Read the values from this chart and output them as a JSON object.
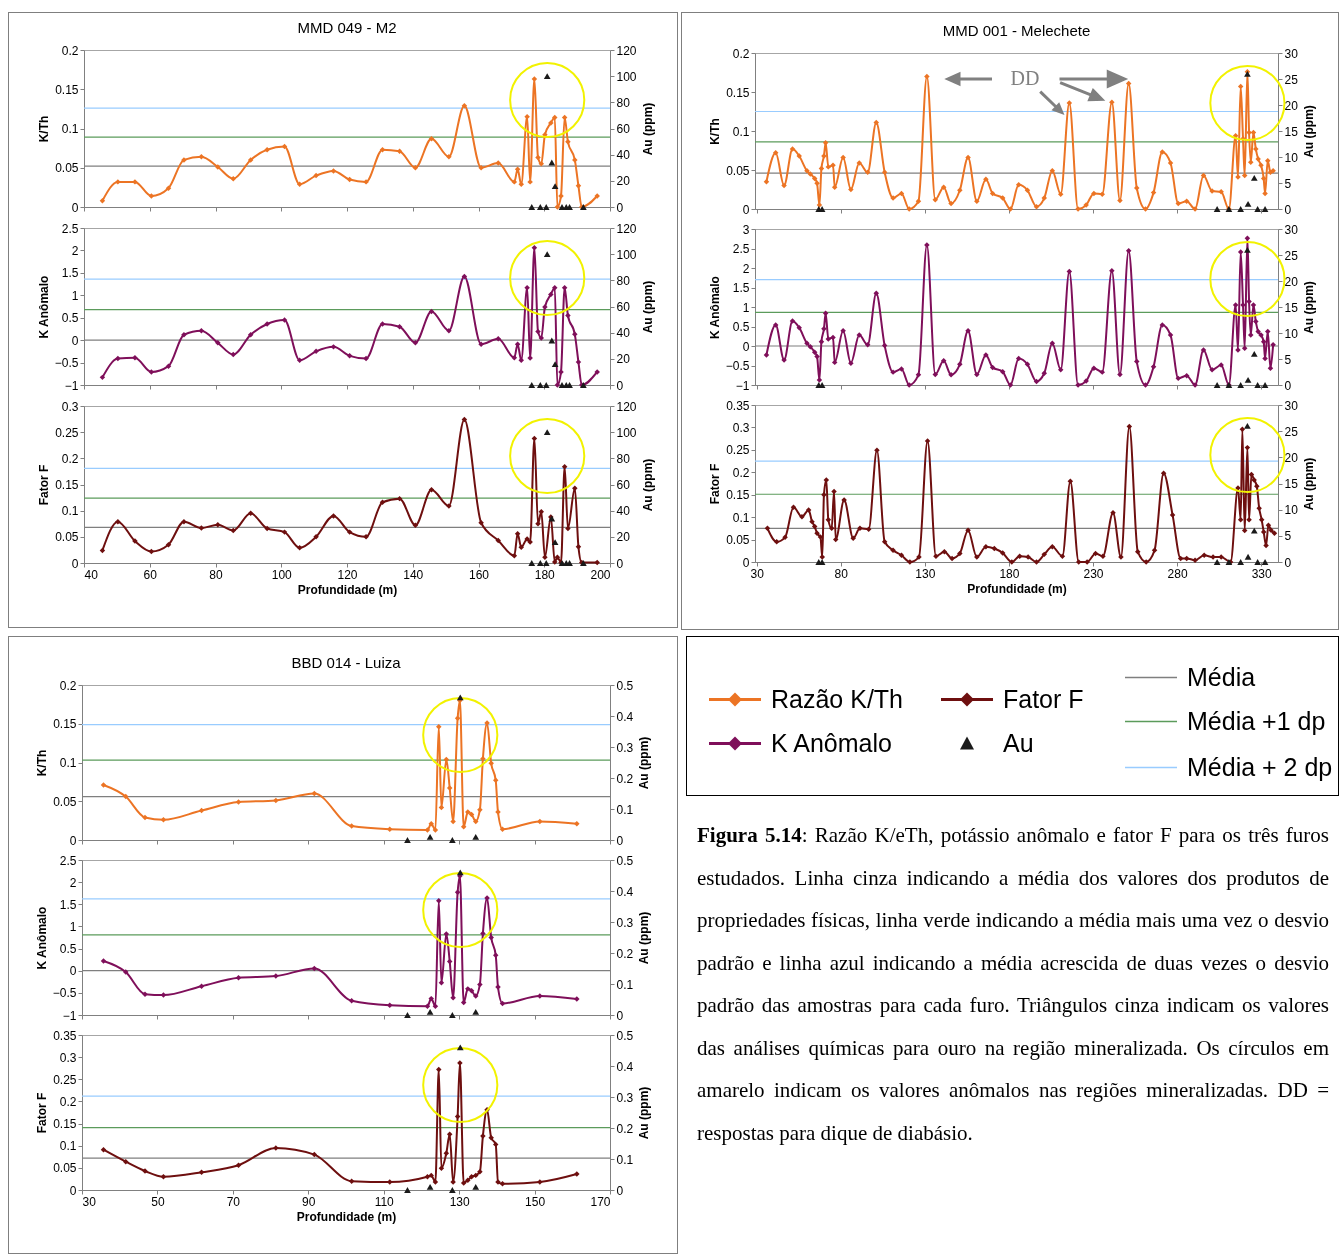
{
  "chart_data": [
    {
      "type": "line",
      "title": "MMD 049 - M2",
      "ylabel": "K/Th",
      "y2label": "Au (ppm)",
      "marker": "diamond",
      "tick_labels": "y",
      "x": [
        45.6,
        50.3,
        55.5,
        60.5,
        65.7,
        70.4,
        75.7,
        80.7,
        85.4,
        90.7,
        95.7,
        101,
        105.6,
        110.6,
        115.9,
        120.8,
        125.8,
        130.8,
        136,
        140.8,
        145.7,
        151,
        155.7,
        160.8,
        166,
        170.9,
        171.9,
        173,
        174.8,
        175.7,
        177,
        178.1,
        179.1,
        180.2,
        182,
        183.2,
        184,
        185.1,
        186.2,
        187.2,
        189.3,
        190.4,
        191.4,
        196.1
      ],
      "series": [
        {
          "color": "#ec7424",
          "values": [
            0.008,
            0.032,
            0.032,
            0.014,
            0.024,
            0.06,
            0.064,
            0.051,
            0.036,
            0.06,
            0.073,
            0.077,
            0.029,
            0.04,
            0.046,
            0.035,
            0.032,
            0.073,
            0.071,
            0.05,
            0.087,
            0.064,
            0.129,
            0.05,
            0.056,
            0.032,
            0.048,
            0.029,
            0.115,
            0.032,
            0.163,
            0.063,
            0.055,
            0.092,
            0.107,
            0.114,
            0,
            0.014,
            0.114,
            0.083,
            0.06,
            0.027,
            0,
            0.014
          ]
        },
        {
          "type": "scatter",
          "axis": "y2",
          "marker": "triangle",
          "color": "#1a1a1a",
          "x": [
            176.2,
            178.8,
            180.6,
            180.9,
            182.3,
            183.3,
            185.4,
            186.7,
            187.7,
            191.9
          ],
          "values": [
            0,
            0,
            0,
            100,
            34,
            16,
            0,
            0,
            0,
            0
          ]
        }
      ],
      "xlim": [
        40,
        200
      ],
      "xticks": [
        40,
        60,
        80,
        100,
        120,
        140,
        160,
        180,
        200
      ],
      "ylim": [
        0,
        0.2
      ],
      "yticks": [
        0,
        0.05,
        0.1,
        0.15,
        0.2
      ],
      "y2lim": [
        0,
        120
      ],
      "y2ticks": [
        0,
        20,
        40,
        60,
        80,
        100,
        120
      ],
      "ref_lines": [
        {
          "axis": "y",
          "value": 0.052,
          "color": "#7f7f7f"
        },
        {
          "axis": "y",
          "value": 0.089,
          "color": "#5b9b5b"
        },
        {
          "axis": "y",
          "value": 0.126,
          "color": "#99ccff"
        }
      ]
    },
    {
      "type": "line",
      "ylabel": "K Anômalo",
      "y2label": "Au (ppm)",
      "marker": "diamond",
      "tick_labels": "y",
      "x": [
        45.6,
        50.3,
        55.5,
        60.5,
        65.7,
        70.4,
        75.7,
        80.7,
        85.4,
        90.7,
        95.7,
        101,
        105.6,
        110.6,
        115.9,
        120.8,
        125.8,
        130.8,
        136,
        140.8,
        145.7,
        151,
        155.7,
        160.8,
        166,
        170.9,
        171.9,
        173,
        174.8,
        175.7,
        177,
        178.1,
        179.1,
        180.2,
        182,
        183.2,
        184,
        185.1,
        186.2,
        187.2,
        189.3,
        190.4,
        191.4,
        196.1
      ],
      "series": [
        {
          "color": "#7f0f5a",
          "values": [
            -0.83,
            -0.41,
            -0.39,
            -0.71,
            -0.58,
            0.12,
            0.21,
            -0.06,
            -0.32,
            0.12,
            0.36,
            0.45,
            -0.45,
            -0.25,
            -0.15,
            -0.35,
            -0.41,
            0.36,
            0.3,
            -0.06,
            0.64,
            0.21,
            1.42,
            -0.09,
            0.03,
            -0.39,
            -0.09,
            -0.45,
            1.17,
            -0.4,
            2.06,
            0.19,
            0.05,
            0.74,
            1.02,
            1.17,
            -1,
            -0.71,
            1.17,
            0.55,
            0.13,
            -0.49,
            -1,
            -0.71
          ]
        },
        {
          "type": "scatter",
          "axis": "y2",
          "marker": "triangle",
          "color": "#1a1a1a",
          "x": [
            176.2,
            178.8,
            180.6,
            180.9,
            182.3,
            183.3,
            185.4,
            186.7,
            187.7,
            191.9
          ],
          "values": [
            0,
            0,
            0,
            100,
            34,
            16,
            0,
            0,
            0,
            0
          ]
        }
      ],
      "xlim": [
        40,
        200
      ],
      "xticks": [
        40,
        60,
        80,
        100,
        120,
        140,
        160,
        180,
        200
      ],
      "ylim": [
        -1,
        2.5
      ],
      "yticks": [
        -1,
        -0.5,
        0,
        0.5,
        1,
        1.5,
        2,
        2.5
      ],
      "y2lim": [
        0,
        120
      ],
      "y2ticks": [
        0,
        20,
        40,
        60,
        80,
        100,
        120
      ],
      "ref_lines": [
        {
          "axis": "y",
          "value": 0,
          "color": "#7f7f7f"
        },
        {
          "axis": "y",
          "value": 0.68,
          "color": "#5b9b5b"
        },
        {
          "axis": "y",
          "value": 1.36,
          "color": "#99ccff"
        }
      ]
    },
    {
      "type": "line",
      "ylabel": "Fator F",
      "y2label": "Au (ppm)",
      "xlabel": "Profundidade (m)",
      "marker": "diamond",
      "x": [
        45.6,
        50.3,
        55.5,
        60.5,
        65.7,
        70.4,
        75.7,
        80.7,
        85.4,
        90.7,
        95.7,
        101,
        105.6,
        110.6,
        115.9,
        120.8,
        125.8,
        130.8,
        136,
        140.8,
        145.7,
        151,
        155.7,
        160.8,
        166,
        170.9,
        171.9,
        173,
        174.8,
        175.7,
        177,
        178.1,
        179.1,
        180.2,
        182,
        183.2,
        184,
        185.1,
        186.2,
        187.2,
        189.3,
        190.4,
        191.4,
        196.1
      ],
      "series": [
        {
          "color": "#6e0f0f",
          "values": [
            0.024,
            0.079,
            0.042,
            0.022,
            0.035,
            0.079,
            0.067,
            0.073,
            0.062,
            0.095,
            0.066,
            0.059,
            0.029,
            0.05,
            0.09,
            0.059,
            0.05,
            0.116,
            0.123,
            0.072,
            0.14,
            0.109,
            0.274,
            0.077,
            0.043,
            0.014,
            0.056,
            0.03,
            0.046,
            0.04,
            0.238,
            0.075,
            0.098,
            0.011,
            0.088,
            0.002,
            0.011,
            0.001,
            0.184,
            0.066,
            0.143,
            0.031,
            0.001,
            0.001
          ]
        },
        {
          "type": "scatter",
          "axis": "y2",
          "marker": "triangle",
          "color": "#1a1a1a",
          "x": [
            176.2,
            178.8,
            180.6,
            180.9,
            182.3,
            183.3,
            185.4,
            186.7,
            187.7,
            191.9
          ],
          "values": [
            0,
            0,
            0,
            100,
            34,
            16,
            0,
            0,
            0,
            0
          ]
        }
      ],
      "xlim": [
        40,
        200
      ],
      "xticks": [
        40,
        60,
        80,
        100,
        120,
        140,
        160,
        180,
        200
      ],
      "ylim": [
        0,
        0.3
      ],
      "yticks": [
        0,
        0.05,
        0.1,
        0.15,
        0.2,
        0.25,
        0.3
      ],
      "y2lim": [
        0,
        120
      ],
      "y2ticks": [
        0,
        20,
        40,
        60,
        80,
        100,
        120
      ],
      "ref_lines": [
        {
          "axis": "y",
          "value": 0.068,
          "color": "#7f7f7f"
        },
        {
          "axis": "y",
          "value": 0.124,
          "color": "#5b9b5b"
        },
        {
          "axis": "y",
          "value": 0.181,
          "color": "#99ccff"
        }
      ]
    },
    {
      "type": "line",
      "title": "MMD 001 - Melechete",
      "ylabel": "K/Th",
      "y2label": "Au (ppm)",
      "marker": "diamond",
      "tick_labels": "y",
      "x": [
        35.8,
        41.3,
        46.3,
        51.3,
        55.3,
        59.9,
        61.9,
        64.5,
        65.9,
        67.3,
        68.5,
        70,
        71,
        72.6,
        75.4,
        76.4,
        81.4,
        86,
        91,
        96,
        101.1,
        106.1,
        111.1,
        116.1,
        120.7,
        126.2,
        131.2,
        136.2,
        141.2,
        145.6,
        150.8,
        155.7,
        160.9,
        166.3,
        170.3,
        176.3,
        180.9,
        185.8,
        191,
        196.4,
        201,
        205.8,
        210.8,
        215.9,
        221.1,
        225.9,
        230.5,
        235.5,
        241.2,
        246,
        251.2,
        256,
        261.2,
        266,
        271.2,
        276.1,
        280.7,
        285.7,
        290.7,
        295.7,
        300.8,
        306.2,
        310.8,
        314.8,
        316.2,
        317.8,
        319.2,
        320.2,
        321.8,
        322.8,
        323.8,
        325.4,
        326.8,
        328.2,
        329.9,
        331.5,
        332.3,
        333.9,
        335.5,
        337.1
      ],
      "series": [
        {
          "color": "#ec7424",
          "values": [
            0.035,
            0.072,
            0.03,
            0.077,
            0.068,
            0.049,
            0.045,
            0.039,
            0.033,
            0.005,
            0.052,
            0.068,
            0.085,
            0.054,
            0.056,
            0.028,
            0.066,
            0.025,
            0.059,
            0.047,
            0.111,
            0.047,
            0.014,
            0.02,
            0,
            0.01,
            0.17,
            0.012,
            0.028,
            0.007,
            0.024,
            0.066,
            0.01,
            0.038,
            0.02,
            0.014,
            0,
            0.031,
            0.024,
            0.003,
            0.014,
            0.049,
            0.019,
            0.136,
            0,
            0.005,
            0.02,
            0.019,
            0.137,
            0.011,
            0.161,
            0.027,
            0,
            0.021,
            0.073,
            0.059,
            0.007,
            0.01,
            0,
            0.043,
            0.023,
            0.022,
            0,
            0.094,
            0.041,
            0.157,
            0.09,
            0.043,
            0.176,
            0.098,
            0.06,
            0.098,
            0.077,
            0.064,
            0.056,
            0.039,
            0.02,
            0.062,
            0.047,
            0.049
          ]
        },
        {
          "type": "scatter",
          "axis": "y2",
          "marker": "triangle",
          "color": "#1a1a1a",
          "x": [
            66.9,
            68.9,
            303.8,
            310.8,
            317.8,
            321.8,
            322.2,
            325.9,
            327.9,
            332.3
          ],
          "values": [
            0,
            0,
            0,
            0,
            0,
            26,
            1,
            6,
            0,
            0
          ]
        }
      ],
      "xlim": [
        29,
        340
      ],
      "xticks": [
        30,
        80,
        130,
        180,
        230,
        280,
        330
      ],
      "ylim": [
        0,
        0.2
      ],
      "yticks": [
        0,
        0.05,
        0.1,
        0.15,
        0.2
      ],
      "y2lim": [
        0,
        30
      ],
      "y2ticks": [
        0,
        5,
        10,
        15,
        20,
        25,
        30
      ],
      "ref_lines": [
        {
          "axis": "y",
          "value": 0.046,
          "color": "#7f7f7f"
        },
        {
          "axis": "y",
          "value": 0.086,
          "color": "#5b9b5b"
        },
        {
          "axis": "y",
          "value": 0.125,
          "color": "#99ccff"
        }
      ],
      "annotations": [
        "DD"
      ]
    },
    {
      "type": "line",
      "ylabel": "K Anômalo",
      "y2label": "Au (ppm)",
      "marker": "diamond",
      "tick_labels": "y",
      "x": [
        35.8,
        41.3,
        46.3,
        51.3,
        55.3,
        59.9,
        61.9,
        64.5,
        65.9,
        67.3,
        68.5,
        70,
        71,
        72.6,
        75.4,
        76.4,
        81.4,
        86,
        91,
        96,
        101.1,
        106.1,
        111.1,
        116.1,
        120.7,
        126.2,
        131.2,
        136.2,
        141.2,
        145.6,
        150.8,
        155.7,
        160.9,
        166.3,
        170.3,
        176.3,
        180.9,
        185.8,
        191,
        196.4,
        201,
        205.8,
        210.8,
        215.9,
        221.1,
        225.9,
        230.5,
        235.5,
        241.2,
        246,
        251.2,
        256,
        261.2,
        266,
        271.2,
        276.1,
        280.7,
        285.7,
        290.7,
        295.7,
        300.8,
        306.2,
        310.8,
        314.8,
        316.2,
        317.8,
        319.2,
        320.2,
        321.8,
        322.8,
        323.8,
        325.4,
        326.8,
        328.2,
        329.9,
        331.5,
        332.3,
        333.9,
        335.5,
        337.1
      ],
      "series": [
        {
          "color": "#7f0f5a",
          "values": [
            -0.23,
            0.54,
            -0.36,
            0.64,
            0.47,
            0.07,
            -0.02,
            -0.16,
            -0.27,
            -0.87,
            0.11,
            0.44,
            0.84,
            0.18,
            0.22,
            -0.42,
            0.39,
            -0.44,
            0.28,
            0.03,
            1.35,
            0.01,
            -0.67,
            -0.59,
            -1,
            -0.74,
            2.59,
            -0.73,
            -0.38,
            -0.74,
            -0.47,
            0.39,
            -0.73,
            -0.23,
            -0.55,
            -0.66,
            -1,
            -0.32,
            -0.47,
            -0.91,
            -0.7,
            0.07,
            -0.61,
            1.91,
            -1,
            -0.9,
            -0.57,
            -0.67,
            1.93,
            -0.73,
            2.44,
            -0.4,
            -1,
            -0.53,
            0.54,
            0.28,
            -0.83,
            -0.76,
            -1,
            -0.1,
            -0.61,
            -0.49,
            -1,
            1.05,
            -0.1,
            2.41,
            1.05,
            -0.06,
            2.76,
            1.14,
            0.28,
            1.05,
            0.63,
            0.37,
            0.28,
            0.11,
            -0.32,
            0.37,
            -0.57,
            0.03
          ]
        },
        {
          "type": "scatter",
          "axis": "y2",
          "marker": "triangle",
          "color": "#1a1a1a",
          "x": [
            66.9,
            68.9,
            303.8,
            310.8,
            317.8,
            321.8,
            322.2,
            325.9,
            327.9,
            332.3
          ],
          "values": [
            0,
            0,
            0,
            0,
            0,
            26,
            1,
            6,
            0,
            0
          ]
        }
      ],
      "xlim": [
        29,
        340
      ],
      "xticks": [
        30,
        80,
        130,
        180,
        230,
        280,
        330
      ],
      "ylim": [
        -1,
        3
      ],
      "yticks": [
        -1,
        -0.5,
        0,
        0.5,
        1,
        1.5,
        2,
        2.5,
        3
      ],
      "y2lim": [
        0,
        30
      ],
      "y2ticks": [
        0,
        5,
        10,
        15,
        20,
        25,
        30
      ],
      "ref_lines": [
        {
          "axis": "y",
          "value": 0,
          "color": "#7f7f7f"
        },
        {
          "axis": "y",
          "value": 0.86,
          "color": "#5b9b5b"
        },
        {
          "axis": "y",
          "value": 1.7,
          "color": "#99ccff"
        }
      ]
    },
    {
      "type": "line",
      "ylabel": "Fator F",
      "y2label": "Au (ppm)",
      "xlabel": "Profundidade (m)",
      "marker": "diamond",
      "x": [
        36.4,
        41.9,
        46.9,
        51.9,
        56.9,
        60.9,
        62.9,
        64.5,
        65.9,
        67.9,
        69,
        70,
        71.4,
        72.6,
        74.6,
        76,
        77,
        82,
        87.4,
        91.4,
        96.6,
        101.5,
        106.1,
        111.1,
        116.1,
        121.1,
        126.5,
        131.6,
        136.6,
        141.6,
        146.2,
        150.8,
        155.7,
        160.9,
        166.3,
        171.3,
        176.3,
        181.7,
        186.4,
        191.4,
        196.4,
        201,
        205.8,
        211.8,
        216.5,
        221.5,
        226.5,
        231.5,
        235.9,
        241.9,
        246.6,
        251.6,
        256.6,
        261.6,
        266.6,
        272,
        277.3,
        282.1,
        285.7,
        290.7,
        296.1,
        301.4,
        306.2,
        311.8,
        316.2,
        317.8,
        318.8,
        320.2,
        321.8,
        322.8,
        324.2,
        325.8,
        327.4,
        328.8,
        330.3,
        331.5,
        332.9,
        334.3,
        335.9,
        337.9
      ],
      "series": [
        {
          "color": "#6e0f0f",
          "values": [
            0.075,
            0.045,
            0.055,
            0.122,
            0.101,
            0.116,
            0.09,
            0.079,
            0.064,
            0.056,
            0.011,
            0.15,
            0.183,
            0.094,
            0.075,
            0.157,
            0.05,
            0.138,
            0.053,
            0.075,
            0.073,
            0.249,
            0.045,
            0.026,
            0.015,
            0,
            0.011,
            0.27,
            0.013,
            0.023,
            0.008,
            0.019,
            0.071,
            0.011,
            0.034,
            0.03,
            0.02,
            0,
            0.013,
            0.011,
            0,
            0.017,
            0.034,
            0.013,
            0.18,
            0,
            0,
            0.019,
            0.013,
            0.11,
            0.011,
            0.302,
            0.023,
            0,
            0.026,
            0.198,
            0.105,
            0.008,
            0.008,
            0.004,
            0.015,
            0.011,
            0.011,
            0,
            0.165,
            0.094,
            0.296,
            0.07,
            0.255,
            0.094,
            0.195,
            0.183,
            0.169,
            0.12,
            0.094,
            0.067,
            0.037,
            0.082,
            0.071,
            0.064
          ]
        },
        {
          "type": "scatter",
          "axis": "y2",
          "marker": "triangle",
          "color": "#1a1a1a",
          "x": [
            66.9,
            68.9,
            303.8,
            310.8,
            317.8,
            321.8,
            322.2,
            325.9,
            327.9,
            332.3
          ],
          "values": [
            0,
            0,
            0,
            0,
            0,
            26,
            1,
            6,
            0,
            0
          ]
        }
      ],
      "xlim": [
        29,
        340
      ],
      "xticks": [
        30,
        80,
        130,
        180,
        230,
        280,
        330
      ],
      "ylim": [
        0,
        0.35
      ],
      "yticks": [
        0,
        0.05,
        0.1,
        0.15,
        0.2,
        0.25,
        0.3,
        0.35
      ],
      "y2lim": [
        0,
        30
      ],
      "y2ticks": [
        0,
        5,
        10,
        15,
        20,
        25,
        30
      ],
      "ref_lines": [
        {
          "axis": "y",
          "value": 0.075,
          "color": "#7f7f7f"
        },
        {
          "axis": "y",
          "value": 0.151,
          "color": "#5b9b5b"
        },
        {
          "axis": "y",
          "value": 0.225,
          "color": "#99ccff"
        }
      ]
    },
    {
      "type": "line",
      "title": "BBD 014 - Luiza",
      "ylabel": "K/Th",
      "y2label": "Au (ppm)",
      "marker": "diamond",
      "tick_labels": "y",
      "x": [
        35.7,
        41.6,
        46.7,
        51.6,
        61.7,
        71.5,
        81.4,
        91.6,
        101.5,
        111.6,
        121.6,
        122.6,
        123.7,
        124.6,
        125.3,
        126.6,
        127.5,
        128.4,
        129.6,
        130.2,
        131.2,
        132.3,
        133.3,
        134.4,
        135.5,
        136.3,
        137.4,
        138.5,
        139.7,
        140.3,
        141.5,
        151.4,
        161.2
      ],
      "series": [
        {
          "color": "#ec7424",
          "values": [
            0.071,
            0.056,
            0.029,
            0.026,
            0.038,
            0.049,
            0.051,
            0.06,
            0.018,
            0.014,
            0.013,
            0.021,
            0.013,
            0.146,
            0.042,
            0.104,
            0.067,
            0.024,
            0.157,
            0.18,
            0.017,
            0.036,
            0.033,
            0.024,
            0.039,
            0.105,
            0.151,
            0.099,
            0.077,
            0.036,
            0.014,
            0.024,
            0.021
          ]
        },
        {
          "type": "scatter",
          "axis": "y2",
          "marker": "triangle",
          "color": "#1a1a1a",
          "x": [
            116.3,
            122.3,
            128.2,
            130.3,
            134.4
          ],
          "values": [
            0,
            0.01,
            0,
            0.46,
            0.01
          ]
        }
      ],
      "xlim": [
        30,
        170
      ],
      "xticks": [
        30,
        50,
        70,
        90,
        110,
        130,
        150,
        170
      ],
      "ylim": [
        0,
        0.2
      ],
      "yticks": [
        0,
        0.05,
        0.1,
        0.15,
        0.2
      ],
      "y2lim": [
        0,
        0.5
      ],
      "y2ticks": [
        0,
        0.1,
        0.2,
        0.3,
        0.4,
        0.5
      ],
      "ref_lines": [
        {
          "axis": "y",
          "value": 0.056,
          "color": "#7f7f7f"
        },
        {
          "axis": "y",
          "value": 0.103,
          "color": "#5b9b5b"
        },
        {
          "axis": "y",
          "value": 0.149,
          "color": "#99ccff"
        }
      ]
    },
    {
      "type": "line",
      "ylabel": "K Anômalo",
      "y2label": "Au (ppm)",
      "marker": "diamond",
      "tick_labels": "y",
      "x": [
        35.7,
        41.6,
        46.7,
        51.6,
        61.7,
        71.5,
        81.4,
        91.6,
        101.5,
        111.6,
        121.6,
        122.6,
        123.7,
        124.6,
        125.3,
        126.6,
        127.5,
        128.4,
        129.6,
        130.2,
        131.2,
        132.3,
        133.3,
        134.4,
        135.5,
        136.3,
        137.4,
        138.5,
        139.7,
        140.3,
        141.5,
        151.4,
        161.2
      ],
      "series": [
        {
          "color": "#7f0f5a",
          "values": [
            0.22,
            -0.03,
            -0.53,
            -0.55,
            -0.35,
            -0.16,
            -0.12,
            0.05,
            -0.68,
            -0.78,
            -0.8,
            -0.63,
            -0.8,
            1.58,
            -0.27,
            0.83,
            0.21,
            -0.61,
            1.77,
            2.14,
            -0.72,
            -0.41,
            -0.45,
            -0.57,
            -0.31,
            0.84,
            1.64,
            0.75,
            0.35,
            -0.37,
            -0.74,
            -0.57,
            -0.64
          ]
        },
        {
          "type": "scatter",
          "axis": "y2",
          "marker": "triangle",
          "color": "#1a1a1a",
          "x": [
            116.3,
            122.3,
            128.2,
            130.3,
            134.4
          ],
          "values": [
            0,
            0.01,
            0,
            0.46,
            0.01
          ]
        }
      ],
      "xlim": [
        30,
        170
      ],
      "xticks": [
        30,
        50,
        70,
        90,
        110,
        130,
        150,
        170
      ],
      "ylim": [
        -1,
        2.5
      ],
      "yticks": [
        -1,
        -0.5,
        0,
        0.5,
        1,
        1.5,
        2,
        2.5
      ],
      "y2lim": [
        0,
        0.5
      ],
      "y2ticks": [
        0,
        0.1,
        0.2,
        0.3,
        0.4,
        0.5
      ],
      "ref_lines": [
        {
          "axis": "y",
          "value": 0,
          "color": "#7f7f7f"
        },
        {
          "axis": "y",
          "value": 0.81,
          "color": "#5b9b5b"
        },
        {
          "axis": "y",
          "value": 1.62,
          "color": "#99ccff"
        }
      ]
    },
    {
      "type": "line",
      "ylabel": "Fator F",
      "y2label": "Au (ppm)",
      "xlabel": "Profundidade (m)",
      "marker": "diamond",
      "x": [
        35.7,
        41.6,
        46.7,
        51.6,
        61.7,
        71.5,
        81.4,
        91.6,
        101.5,
        111.6,
        121.6,
        122.6,
        123.7,
        124.6,
        125.3,
        126.6,
        127.5,
        128.4,
        129.6,
        130.2,
        131.2,
        132.3,
        133.3,
        134.4,
        135.5,
        136.3,
        137.4,
        138.5,
        139.7,
        140.3,
        141.5,
        151.4,
        161.2
      ],
      "series": [
        {
          "color": "#6e0f0f",
          "values": [
            0.091,
            0.064,
            0.043,
            0.03,
            0.04,
            0.056,
            0.095,
            0.08,
            0.02,
            0.018,
            0.03,
            0.033,
            0.018,
            0.272,
            0.049,
            0.083,
            0.126,
            0.018,
            0.166,
            0.287,
            0.016,
            0.022,
            0.03,
            0.033,
            0.041,
            0.122,
            0.181,
            0.118,
            0.103,
            0.018,
            0.014,
            0.018,
            0.036
          ]
        },
        {
          "type": "scatter",
          "axis": "y2",
          "marker": "triangle",
          "color": "#1a1a1a",
          "x": [
            116.3,
            122.3,
            128.2,
            130.3,
            134.4
          ],
          "values": [
            0,
            0.01,
            0,
            0.46,
            0.01
          ]
        }
      ],
      "xlim": [
        30,
        170
      ],
      "xticks": [
        30,
        50,
        70,
        90,
        110,
        130,
        150,
        170
      ],
      "ylim": [
        0,
        0.35
      ],
      "yticks": [
        0,
        0.05,
        0.1,
        0.15,
        0.2,
        0.25,
        0.3,
        0.35
      ],
      "y2lim": [
        0,
        0.5
      ],
      "y2ticks": [
        0,
        0.1,
        0.2,
        0.3,
        0.4,
        0.5
      ],
      "ref_lines": [
        {
          "axis": "y",
          "value": 0.072,
          "color": "#7f7f7f"
        },
        {
          "axis": "y",
          "value": 0.141,
          "color": "#5b9b5b"
        },
        {
          "axis": "y",
          "value": 0.212,
          "color": "#99ccff"
        }
      ]
    },
    {
      "type": "other",
      "series": [
        {
          "name": "Razão K/Th",
          "type": "line",
          "marker": "diamond",
          "color": "#ec7424"
        },
        {
          "name": "K Anômalo",
          "type": "line",
          "marker": "diamond",
          "color": "#7f0f5a"
        },
        {
          "name": "Fator F",
          "type": "line",
          "marker": "diamond",
          "color": "#6e0f0f"
        },
        {
          "name": "Au",
          "type": "scatter",
          "marker": "triangle",
          "color": "#1a1a1a"
        },
        {
          "name": "Média",
          "type": "line",
          "marker": "none",
          "color": "#7f7f7f"
        },
        {
          "name": "Média +1 dp",
          "type": "line",
          "marker": "none",
          "color": "#5b9b5b"
        },
        {
          "name": "Média + 2 dp",
          "type": "line",
          "marker": "none",
          "color": "#99ccff"
        }
      ],
      "annotations": [
        "Figura 5.14: Razão K/eTh, potássio anômalo e fator F para os três furos estudados. Linha cinza indicando a média dos valores dos produtos de propriedades físicas, linha verde indicando a média mais uma vez o desvio padrão e linha azul indicando a média acrescida de duas vezes o desvio padrão das amostras para cada furo. Triângulos cinza indicam os valores das análises químicas para ouro na região mineralizada. Os círculos em amarelo indicam os valores anômalos nas regiões mineralizadas. DD = respostas para dique de diabásio."
      ]
    }
  ]
}
